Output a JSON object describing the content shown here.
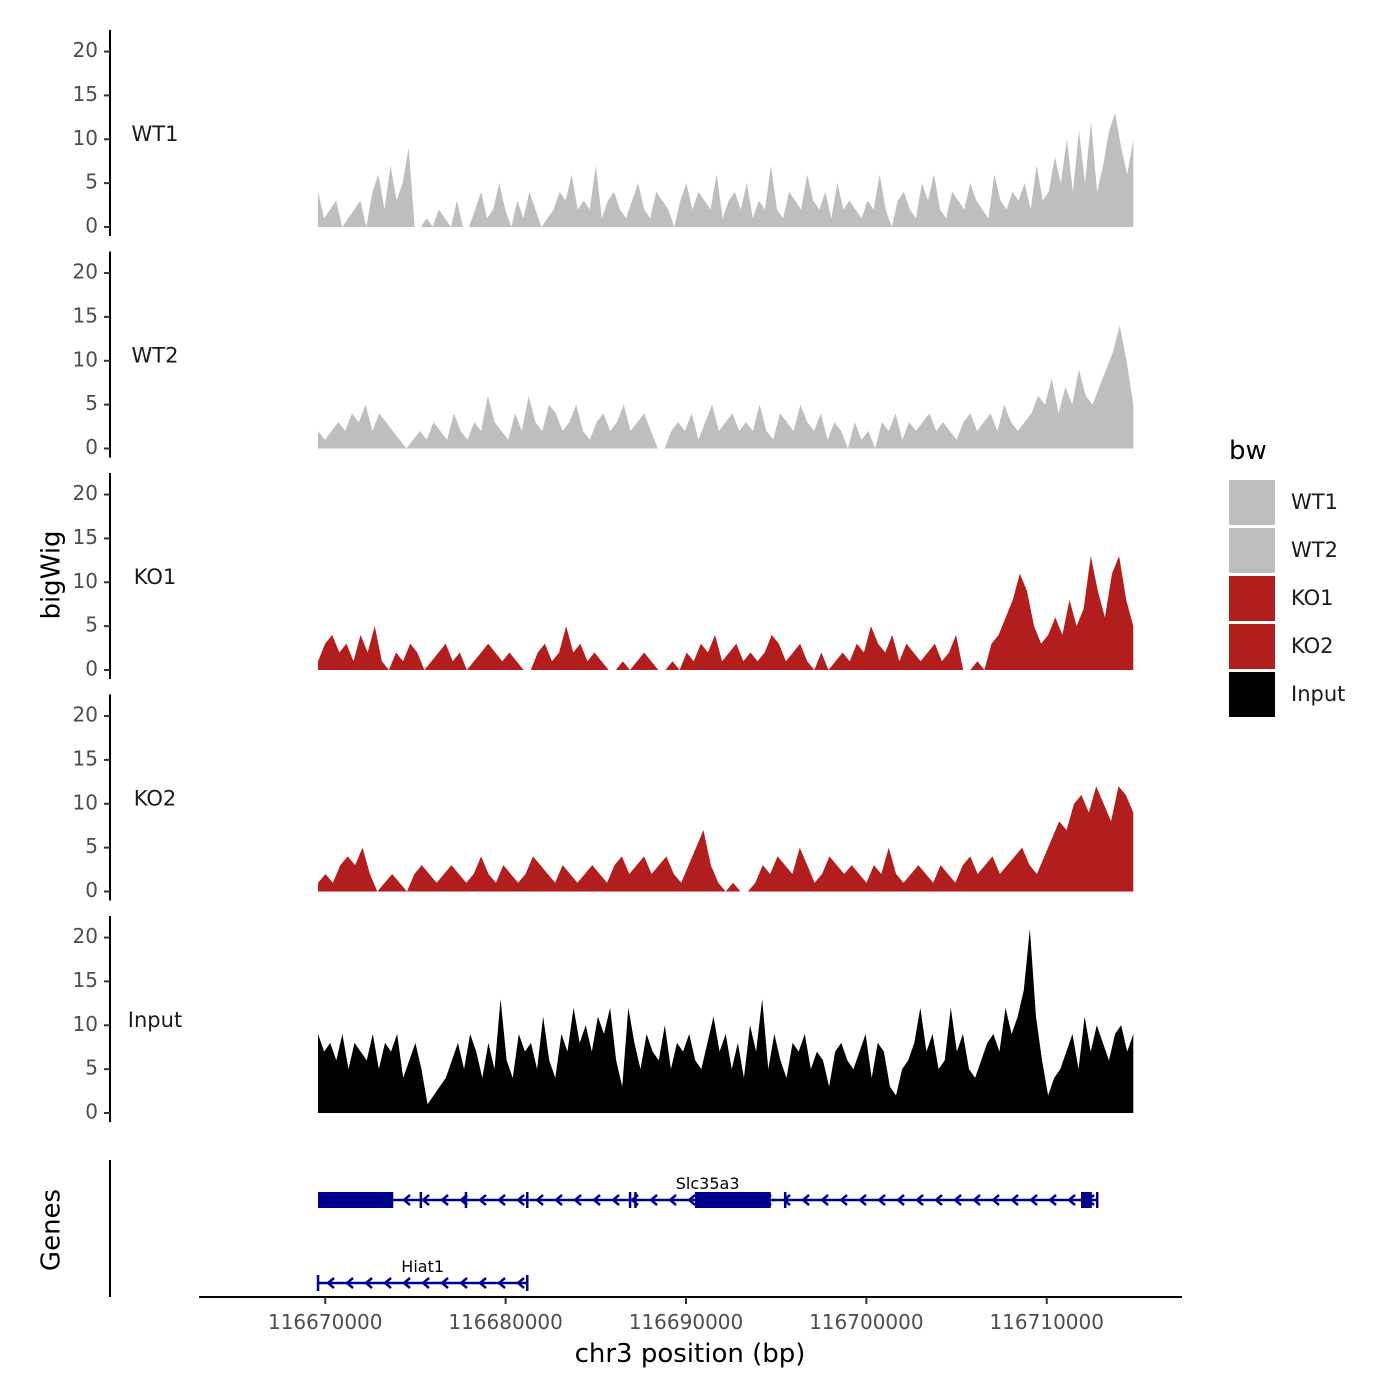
{
  "chart_data": {
    "type": "area",
    "title": "",
    "xlabel": "chr3 position (bp)",
    "ylabel": "bigWig",
    "genes_label": "Genes",
    "xlim": [
      116663000,
      116717500
    ],
    "x_ticks": [
      116670000,
      116680000,
      116690000,
      116700000,
      116710000
    ],
    "x_tick_labels": [
      "116670000",
      "116680000",
      "116690000",
      "116700000",
      "116710000"
    ],
    "ylim": [
      0,
      22
    ],
    "y_ticks": [
      0,
      5,
      10,
      15,
      20
    ],
    "y_tick_labels": [
      "0",
      "5",
      "10",
      "15",
      "20"
    ],
    "region": [
      116669600,
      116714800
    ],
    "legend": {
      "title": "bw",
      "position": "right",
      "entries": [
        {
          "label": "WT1",
          "color": "#bebebe"
        },
        {
          "label": "WT2",
          "color": "#bebebe"
        },
        {
          "label": "KO1",
          "color": "#b21e1e"
        },
        {
          "label": "KO2",
          "color": "#b21e1e"
        },
        {
          "label": "Input",
          "color": "#000000"
        }
      ]
    },
    "series": [
      {
        "name": "WT1",
        "color": "#bebebe",
        "values": [
          4,
          1,
          2,
          3,
          0,
          1,
          2,
          3,
          0,
          4,
          6,
          2,
          7,
          3,
          5,
          9,
          0,
          0,
          1,
          0,
          2,
          1,
          0,
          3,
          0,
          0,
          2,
          4,
          1,
          2,
          5,
          2,
          0,
          3,
          1,
          4,
          2,
          0,
          1,
          2,
          4,
          3,
          6,
          2,
          3,
          2,
          7,
          1,
          3,
          4,
          2,
          1,
          3,
          5,
          2,
          1,
          4,
          3,
          2,
          0,
          3,
          5,
          2,
          4,
          3,
          2,
          6,
          1,
          3,
          4,
          2,
          5,
          1,
          3,
          2,
          7,
          2,
          1,
          4,
          3,
          2,
          6,
          3,
          2,
          4,
          1,
          5,
          2,
          3,
          2,
          1,
          3,
          2,
          6,
          2,
          0,
          3,
          4,
          2,
          1,
          5,
          3,
          6,
          2,
          1,
          4,
          3,
          2,
          5,
          3,
          2,
          1,
          6,
          3,
          2,
          4,
          3,
          5,
          2,
          7,
          3,
          4,
          8,
          5,
          10,
          4,
          11,
          5,
          12,
          4,
          7,
          11,
          13,
          9,
          6,
          10
        ]
      },
      {
        "name": "WT2",
        "color": "#bebebe",
        "values": [
          2,
          1,
          2,
          3,
          2,
          4,
          3,
          5,
          2,
          4,
          3,
          2,
          1,
          0,
          1,
          2,
          1,
          3,
          2,
          1,
          4,
          2,
          1,
          3,
          2,
          6,
          3,
          2,
          1,
          4,
          2,
          6,
          3,
          2,
          5,
          4,
          2,
          3,
          5,
          2,
          1,
          3,
          4,
          2,
          3,
          5,
          2,
          3,
          4,
          2,
          0,
          0,
          2,
          3,
          2,
          4,
          1,
          3,
          5,
          2,
          3,
          4,
          2,
          3,
          2,
          5,
          2,
          1,
          4,
          3,
          2,
          5,
          3,
          2,
          4,
          1,
          3,
          2,
          0,
          3,
          1,
          2,
          0,
          3,
          2,
          4,
          1,
          3,
          2,
          3,
          4,
          2,
          3,
          2,
          1,
          3,
          4,
          2,
          3,
          4,
          2,
          5,
          3,
          2,
          3,
          4,
          6,
          5,
          8,
          4,
          7,
          5,
          9,
          6,
          5,
          7,
          9,
          11,
          14,
          10,
          5
        ]
      },
      {
        "name": "KO1",
        "color": "#b21e1e",
        "values": [
          1,
          3,
          4,
          2,
          3,
          1,
          4,
          2,
          5,
          1,
          0,
          2,
          1,
          3,
          2,
          0,
          1,
          2,
          3,
          1,
          2,
          0,
          1,
          2,
          3,
          2,
          1,
          2,
          1,
          0,
          0,
          2,
          3,
          1,
          2,
          5,
          2,
          3,
          1,
          2,
          1,
          0,
          0,
          1,
          0,
          1,
          2,
          1,
          0,
          0,
          1,
          0,
          2,
          1,
          3,
          2,
          4,
          1,
          2,
          3,
          1,
          2,
          1,
          2,
          4,
          3,
          1,
          2,
          3,
          1,
          0,
          2,
          0,
          1,
          2,
          1,
          3,
          2,
          5,
          3,
          2,
          4,
          1,
          3,
          2,
          1,
          2,
          3,
          1,
          2,
          4,
          0,
          0,
          1,
          0,
          3,
          4,
          6,
          8,
          11,
          9,
          5,
          3,
          4,
          6,
          4,
          8,
          5,
          7,
          13,
          9,
          6,
          11,
          13,
          8,
          5
        ]
      },
      {
        "name": "KO2",
        "color": "#b21e1e",
        "values": [
          1,
          2,
          1,
          3,
          4,
          3,
          5,
          2,
          0,
          1,
          2,
          1,
          0,
          2,
          3,
          2,
          1,
          2,
          3,
          2,
          1,
          2,
          4,
          2,
          1,
          3,
          2,
          1,
          2,
          4,
          3,
          2,
          1,
          3,
          2,
          1,
          2,
          3,
          2,
          1,
          3,
          4,
          2,
          3,
          4,
          2,
          3,
          4,
          2,
          1,
          3,
          5,
          7,
          3,
          1,
          0,
          1,
          0,
          0,
          1,
          3,
          2,
          4,
          3,
          2,
          5,
          3,
          1,
          2,
          4,
          3,
          2,
          3,
          2,
          1,
          3,
          2,
          5,
          2,
          1,
          2,
          3,
          2,
          1,
          3,
          2,
          1,
          3,
          4,
          2,
          3,
          4,
          2,
          3,
          4,
          5,
          3,
          2,
          4,
          6,
          8,
          7,
          10,
          11,
          9,
          12,
          10,
          8,
          12,
          11,
          9
        ]
      },
      {
        "name": "Input",
        "color": "#000000",
        "values": [
          9,
          7,
          8,
          6,
          9,
          5,
          8,
          7,
          6,
          9,
          5,
          8,
          7,
          9,
          4,
          6,
          8,
          5,
          1,
          2,
          3,
          4,
          6,
          8,
          5,
          9,
          7,
          4,
          8,
          5,
          13,
          6,
          4,
          9,
          7,
          8,
          5,
          11,
          6,
          4,
          9,
          7,
          12,
          8,
          10,
          7,
          11,
          9,
          12,
          6,
          3,
          12,
          8,
          5,
          9,
          7,
          6,
          10,
          5,
          8,
          7,
          9,
          6,
          5,
          8,
          11,
          7,
          9,
          5,
          8,
          4,
          10,
          7,
          13,
          5,
          9,
          6,
          4,
          8,
          7,
          9,
          5,
          7,
          6,
          3,
          7,
          8,
          6,
          5,
          7,
          9,
          4,
          8,
          7,
          3,
          2,
          5,
          6,
          8,
          12,
          7,
          9,
          5,
          6,
          12,
          7,
          9,
          5,
          4,
          6,
          8,
          9,
          7,
          12,
          9,
          11,
          14,
          21,
          11,
          6,
          2,
          4,
          5,
          7,
          9,
          5,
          11,
          7,
          10,
          8,
          6,
          9,
          10,
          7,
          9
        ]
      }
    ],
    "genes": [
      {
        "name": "Slc35a3",
        "start": 116669600,
        "end": 116712800,
        "strand": "-",
        "exons": [
          [
            116669600,
            116673700
          ],
          [
            116690500,
            116694700
          ],
          [
            116711900,
            116712500
          ]
        ],
        "ticks": [
          116673700,
          116675300,
          116677800,
          116681200,
          116686900,
          116687200,
          116695500,
          116712000,
          116712800
        ]
      },
      {
        "name": "Hiat1",
        "start": 116669600,
        "end": 116681200,
        "strand": "-",
        "exons": [],
        "ticks": [
          116669600,
          116681200
        ]
      }
    ]
  }
}
